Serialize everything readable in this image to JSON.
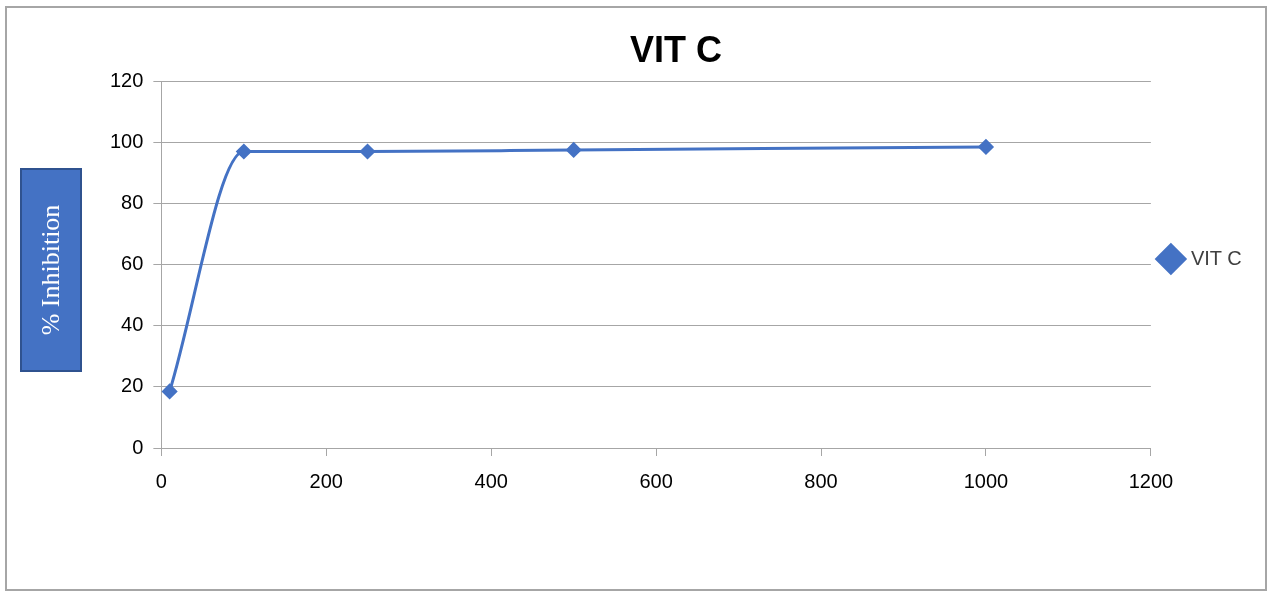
{
  "chart_data": {
    "type": "line",
    "title": "VIT C",
    "ylabel": "% Inhibition",
    "x": [
      10,
      100,
      250,
      500,
      1000
    ],
    "series": [
      {
        "name": "VIT C",
        "color": "#4472c4",
        "values": [
          18.5,
          97,
          97,
          97.5,
          98.5
        ]
      }
    ],
    "xlim": [
      0,
      1200
    ],
    "xticks": [
      0,
      200,
      400,
      600,
      800,
      1000,
      1200
    ],
    "ylim": [
      0,
      120
    ],
    "yticks": [
      0,
      20,
      40,
      60,
      80,
      100,
      120
    ],
    "grid": "y",
    "legend": "right",
    "marker": "diamond",
    "line_style": "solid"
  }
}
